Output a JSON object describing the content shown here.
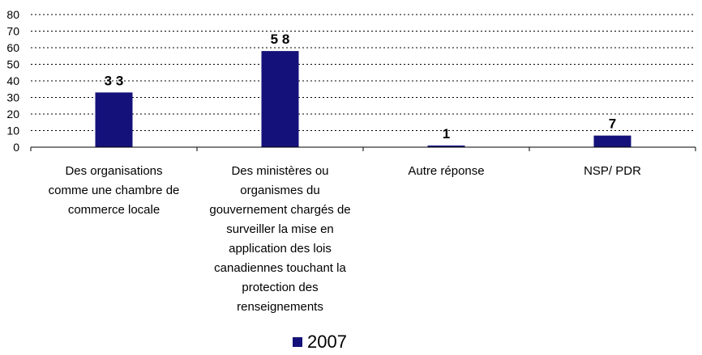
{
  "chart_data": {
    "type": "bar",
    "categories": [
      "Des organisations\ncomme une chambre de\ncommerce locale",
      "Des ministères ou\norganismes du\ngouvernement chargés de\nsurveiller la mise en\napplication des lois\ncanadiennes touchant la\nprotection des\nrenseignements",
      "Autre réponse",
      "NSP/ PDR"
    ],
    "series": [
      {
        "name": "2007",
        "values": [
          33,
          58,
          1,
          7
        ],
        "color": "#14127A"
      }
    ],
    "data_labels": [
      "3 3",
      "5 8",
      "1",
      "7"
    ],
    "y_ticks": [
      "0",
      "10",
      "20",
      "30",
      "40",
      "50",
      "60",
      "70",
      "80"
    ],
    "ylim": [
      0,
      80
    ],
    "grid": "dotted horizontal",
    "legend_position": "bottom",
    "title": "",
    "xlabel": "",
    "ylabel": ""
  }
}
